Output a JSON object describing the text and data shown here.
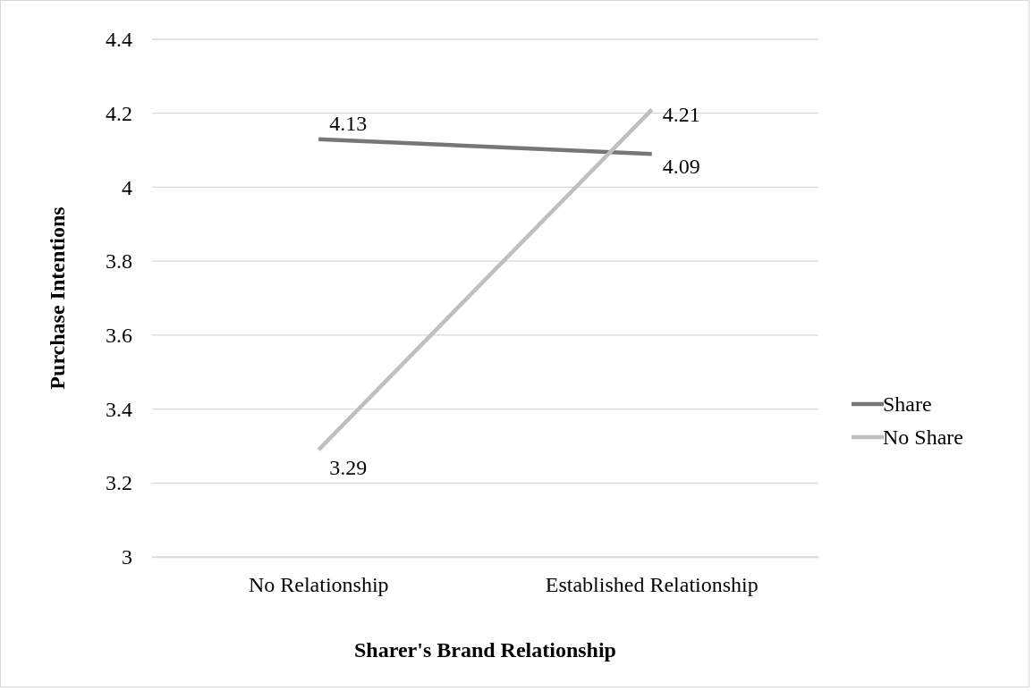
{
  "chart_data": {
    "type": "line",
    "xlabel": "Sharer's Brand Relationship",
    "ylabel": "Purchase Intentions",
    "categories": [
      "No Relationship",
      "Established Relationship"
    ],
    "series": [
      {
        "name": "Share",
        "color": "#767676",
        "values": [
          4.13,
          4.09
        ]
      },
      {
        "name": "No Share",
        "color": "#bfbfbf",
        "values": [
          3.29,
          4.21
        ]
      }
    ],
    "ylim": [
      3,
      4.4
    ],
    "yticks": [
      3,
      3.2,
      3.4,
      3.6,
      3.8,
      4,
      4.2,
      4.4
    ],
    "grid": "y",
    "legend": "right",
    "data_labels": true,
    "marker": "none",
    "line_style": "solid"
  }
}
